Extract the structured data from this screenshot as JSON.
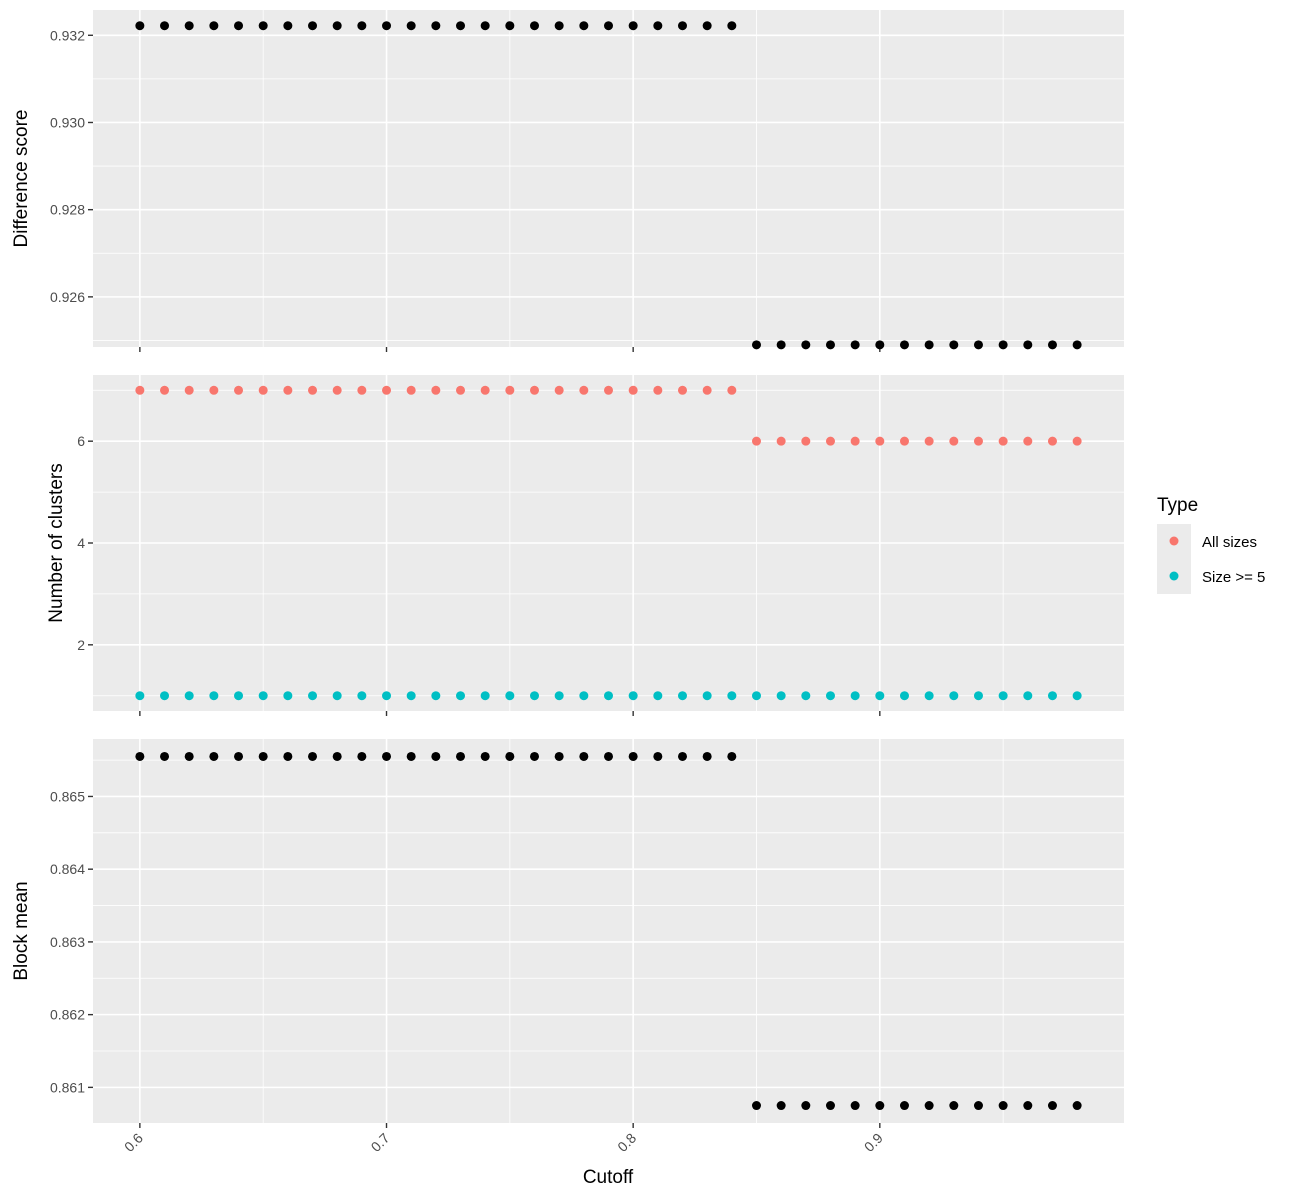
{
  "chart_data": {
    "type": "scatter",
    "x_label": "Cutoff",
    "x_range": [
      0.581,
      0.999
    ],
    "x_ticks": [
      0.6,
      0.7,
      0.8,
      0.9
    ],
    "x_tick_labels": [
      "0.6",
      "0.7",
      "0.8",
      "0.9"
    ],
    "x": [
      0.6,
      0.61,
      0.62,
      0.63,
      0.64,
      0.65,
      0.66,
      0.67,
      0.68,
      0.69,
      0.7,
      0.71,
      0.72,
      0.73,
      0.74,
      0.75,
      0.76,
      0.77,
      0.78,
      0.79,
      0.8,
      0.81,
      0.82,
      0.83,
      0.84,
      0.85,
      0.86,
      0.87,
      0.88,
      0.89,
      0.9,
      0.91,
      0.92,
      0.93,
      0.94,
      0.95,
      0.96,
      0.97,
      0.98
    ],
    "legend": {
      "title": "Type",
      "entries": [
        {
          "label": "All sizes",
          "color": "#F8766D"
        },
        {
          "label": "Size >= 5",
          "color": "#00BFC4"
        }
      ]
    },
    "panels": [
      {
        "id": "difference",
        "y_label": "Difference score",
        "y_range": [
          0.92485,
          0.93258
        ],
        "y_ticks": [
          0.926,
          0.928,
          0.93,
          0.932
        ],
        "y_tick_labels": [
          "0.926",
          "0.928",
          "0.930",
          "0.932"
        ],
        "series": [
          {
            "color": "#000000",
            "values": [
              0.93222,
              0.93222,
              0.93222,
              0.93222,
              0.93222,
              0.93222,
              0.93222,
              0.93222,
              0.93222,
              0.93222,
              0.93222,
              0.93222,
              0.93222,
              0.93222,
              0.93222,
              0.93222,
              0.93222,
              0.93222,
              0.93222,
              0.93222,
              0.93222,
              0.93222,
              0.93222,
              0.93222,
              0.93222,
              0.9249,
              0.9249,
              0.9249,
              0.9249,
              0.9249,
              0.9249,
              0.9249,
              0.9249,
              0.9249,
              0.9249,
              0.9249,
              0.9249,
              0.9249,
              0.9249
            ]
          }
        ]
      },
      {
        "id": "clusters",
        "y_label": "Number of clusters",
        "y_range": [
          0.7,
          7.3
        ],
        "y_ticks": [
          2,
          4,
          6
        ],
        "y_tick_labels": [
          "2",
          "4",
          "6"
        ],
        "series": [
          {
            "name": "All sizes",
            "color": "#F8766D",
            "values": [
              7,
              7,
              7,
              7,
              7,
              7,
              7,
              7,
              7,
              7,
              7,
              7,
              7,
              7,
              7,
              7,
              7,
              7,
              7,
              7,
              7,
              7,
              7,
              7,
              7,
              6,
              6,
              6,
              6,
              6,
              6,
              6,
              6,
              6,
              6,
              6,
              6,
              6,
              6
            ]
          },
          {
            "name": "Size >= 5",
            "color": "#00BFC4",
            "values": [
              1,
              1,
              1,
              1,
              1,
              1,
              1,
              1,
              1,
              1,
              1,
              1,
              1,
              1,
              1,
              1,
              1,
              1,
              1,
              1,
              1,
              1,
              1,
              1,
              1,
              1,
              1,
              1,
              1,
              1,
              1,
              1,
              1,
              1,
              1,
              1,
              1,
              1,
              1
            ]
          }
        ]
      },
      {
        "id": "block",
        "y_label": "Block mean",
        "y_range": [
          0.86051,
          0.86579
        ],
        "y_ticks": [
          0.861,
          0.862,
          0.863,
          0.864,
          0.865
        ],
        "y_tick_labels": [
          "0.861",
          "0.862",
          "0.863",
          "0.864",
          "0.865"
        ],
        "series": [
          {
            "color": "#000000",
            "values": [
              0.86555,
              0.86555,
              0.86555,
              0.86555,
              0.86555,
              0.86555,
              0.86555,
              0.86555,
              0.86555,
              0.86555,
              0.86555,
              0.86555,
              0.86555,
              0.86555,
              0.86555,
              0.86555,
              0.86555,
              0.86555,
              0.86555,
              0.86555,
              0.86555,
              0.86555,
              0.86555,
              0.86555,
              0.86555,
              0.86075,
              0.86075,
              0.86075,
              0.86075,
              0.86075,
              0.86075,
              0.86075,
              0.86075,
              0.86075,
              0.86075,
              0.86075,
              0.86075,
              0.86075,
              0.86075
            ]
          }
        ]
      }
    ]
  }
}
